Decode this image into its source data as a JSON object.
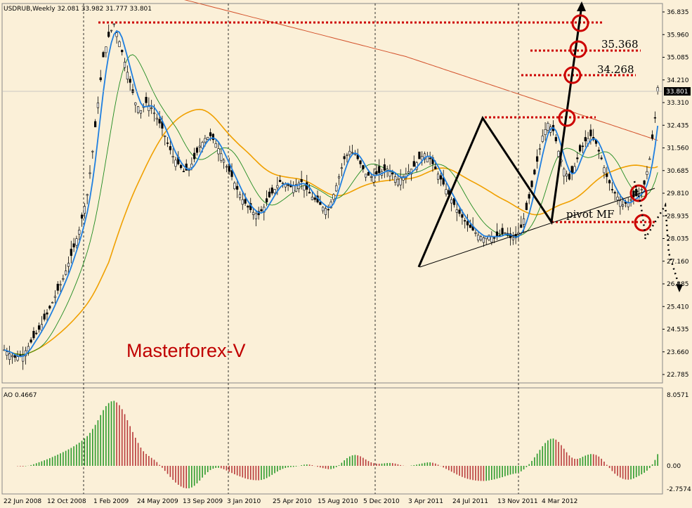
{
  "chart_data": [
    {
      "type": "candlestick",
      "symbol_header": "USDRUB,Weekly  32.081 33.982 31.777 33.801",
      "brand_label": "Masterforex-V",
      "ylim": [
        22.2,
        37.1
      ],
      "y_ticks": [
        "36.835",
        "35.960",
        "35.085",
        "34.210",
        "33.310",
        "32.435",
        "31.560",
        "30.685",
        "29.810",
        "28.935",
        "28.035",
        "27.160",
        "26.285",
        "25.410",
        "24.535",
        "23.660",
        "22.785"
      ],
      "last_price": "33.801",
      "x_tick_labels": [
        "22 Jun 2008",
        "12 Oct 2008",
        "1 Feb 2009",
        "24 May 2009",
        "13 Sep 2009",
        "3 Jan 2010",
        "25 Apr 2010",
        "15 Aug 2010",
        "5 Dec 2010",
        "3 Apr 2011",
        "24 Jul 2011",
        "13 Nov 2011",
        "4 Mar 2012"
      ],
      "close_path": [
        [
          0,
          23.5
        ],
        [
          4,
          23.2
        ],
        [
          7,
          23.3
        ],
        [
          10,
          23.8
        ],
        [
          13,
          24.3
        ],
        [
          16,
          24.9
        ],
        [
          19,
          25.6
        ],
        [
          22,
          26.3
        ],
        [
          25,
          27.2
        ],
        [
          28,
          28.2
        ],
        [
          31,
          29.6
        ],
        [
          33,
          31.3
        ],
        [
          35,
          33.2
        ],
        [
          37,
          35.0
        ],
        [
          39,
          35.8
        ],
        [
          41,
          36.3
        ],
        [
          43,
          35.6
        ],
        [
          45,
          34.8
        ],
        [
          47,
          34.0
        ],
        [
          49,
          33.2
        ],
        [
          51,
          32.9
        ],
        [
          53,
          33.2
        ],
        [
          55,
          33.0
        ],
        [
          57,
          32.6
        ],
        [
          59,
          32.2
        ],
        [
          61,
          31.6
        ],
        [
          63,
          31.1
        ],
        [
          65,
          30.8
        ],
        [
          67,
          30.5
        ],
        [
          69,
          30.6
        ],
        [
          71,
          31.0
        ],
        [
          73,
          31.5
        ],
        [
          75,
          31.8
        ],
        [
          77,
          31.9
        ],
        [
          79,
          31.6
        ],
        [
          81,
          31.2
        ],
        [
          83,
          30.7
        ],
        [
          85,
          30.3
        ],
        [
          87,
          29.8
        ],
        [
          89,
          29.4
        ],
        [
          91,
          29.1
        ],
        [
          93,
          28.9
        ],
        [
          95,
          28.8
        ],
        [
          97,
          29.1
        ],
        [
          99,
          29.5
        ],
        [
          101,
          29.8
        ],
        [
          103,
          30.1
        ],
        [
          105,
          30.0
        ],
        [
          107,
          29.9
        ],
        [
          109,
          30.0
        ],
        [
          111,
          30.1
        ],
        [
          113,
          29.8
        ],
        [
          115,
          29.5
        ],
        [
          117,
          29.3
        ],
        [
          119,
          29.1
        ],
        [
          121,
          29.0
        ],
        [
          123,
          29.6
        ],
        [
          125,
          30.3
        ],
        [
          127,
          31.0
        ],
        [
          129,
          31.3
        ],
        [
          131,
          31.2
        ],
        [
          133,
          30.8
        ],
        [
          135,
          30.4
        ],
        [
          137,
          30.3
        ],
        [
          139,
          30.4
        ],
        [
          141,
          30.5
        ],
        [
          143,
          30.6
        ],
        [
          145,
          30.4
        ],
        [
          147,
          30.2
        ],
        [
          149,
          30.3
        ],
        [
          151,
          30.5
        ],
        [
          153,
          30.7
        ],
        [
          155,
          31.0
        ],
        [
          157,
          31.2
        ],
        [
          159,
          31.0
        ],
        [
          161,
          30.6
        ],
        [
          163,
          30.2
        ],
        [
          165,
          29.8
        ],
        [
          167,
          29.4
        ],
        [
          169,
          29.0
        ],
        [
          171,
          28.7
        ],
        [
          173,
          28.4
        ],
        [
          175,
          28.2
        ],
        [
          177,
          28.0
        ],
        [
          179,
          27.9
        ],
        [
          181,
          28.0
        ],
        [
          183,
          27.9
        ],
        [
          185,
          28.0
        ],
        [
          187,
          28.1
        ],
        [
          189,
          27.9
        ],
        [
          191,
          27.9
        ],
        [
          193,
          28.3
        ],
        [
          195,
          29.0
        ],
        [
          197,
          29.9
        ],
        [
          199,
          30.9
        ],
        [
          201,
          31.9
        ],
        [
          203,
          32.4
        ],
        [
          205,
          32.1
        ],
        [
          207,
          31.3
        ],
        [
          209,
          30.6
        ],
        [
          211,
          30.2
        ],
        [
          213,
          30.7
        ],
        [
          215,
          31.3
        ],
        [
          217,
          31.7
        ],
        [
          219,
          31.9
        ],
        [
          221,
          31.6
        ],
        [
          223,
          31.0
        ],
        [
          225,
          30.3
        ],
        [
          227,
          29.8
        ],
        [
          229,
          29.5
        ],
        [
          231,
          29.2
        ],
        [
          233,
          29.3
        ],
        [
          235,
          29.5
        ],
        [
          237,
          29.6
        ],
        [
          239,
          30.0
        ],
        [
          241,
          31.0
        ],
        [
          243,
          32.6
        ],
        [
          244,
          33.8
        ]
      ],
      "ao": {
        "label": "AO 0.4667",
        "ylim": [
          -2.7574,
          8.0571
        ],
        "y_ticks": [
          "8.0571",
          "0.00",
          "-2.7574"
        ]
      },
      "annotations": [
        {
          "text": "35.368"
        },
        {
          "text": "34.268"
        },
        {
          "text": "pivot MF"
        }
      ],
      "indicators": [
        "blue fast MA",
        "green MA",
        "orange MA",
        "brown long MA"
      ],
      "colors": {
        "panel": "#fbf0d8",
        "up": "#2b9a2b",
        "down": "#b83a3a",
        "blue": "#1f7fe0",
        "orange": "#f0a000",
        "brown": "#d3502a",
        "green": "#1e8a1e",
        "annotation": "#cc0000"
      }
    }
  ]
}
